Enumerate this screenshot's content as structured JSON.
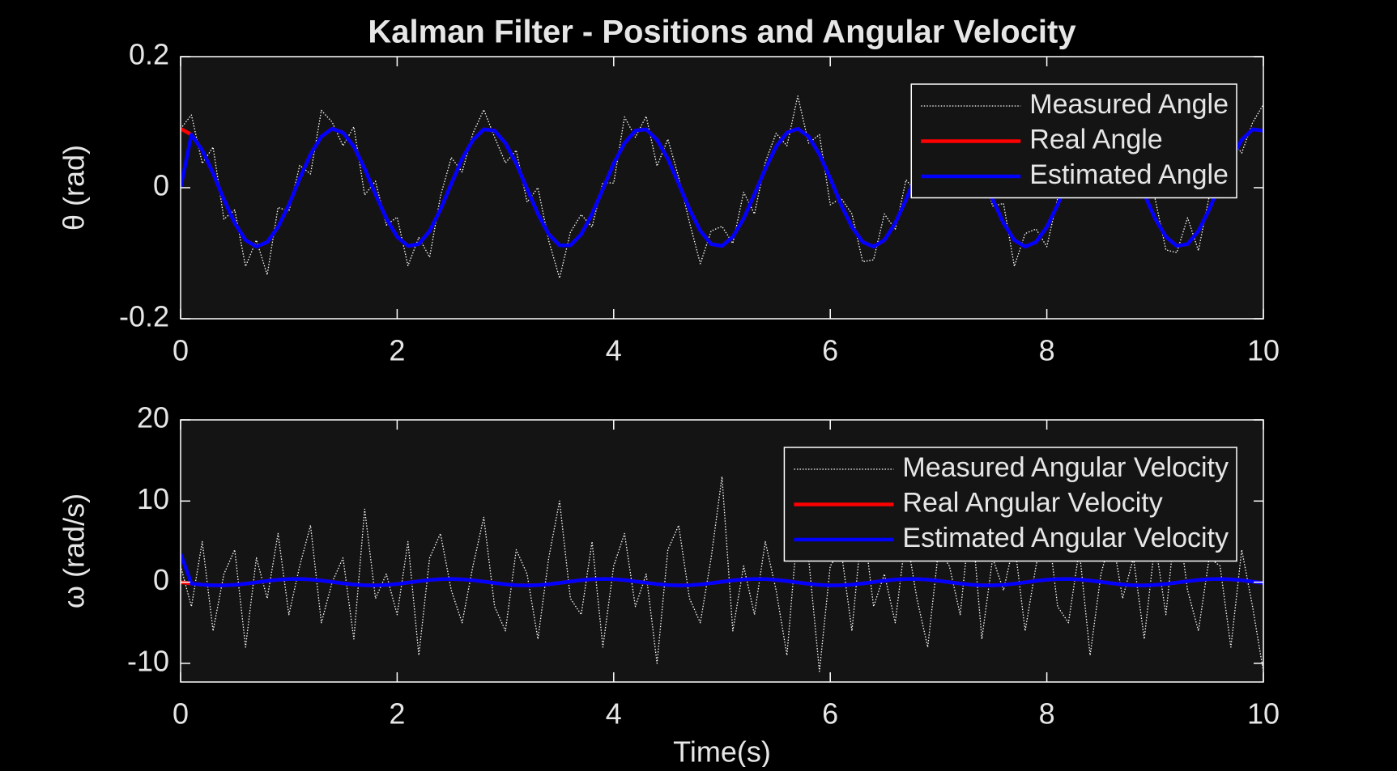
{
  "chart_data": [
    {
      "type": "line",
      "title": "Kalman Filter - Positions and Angular Velocity",
      "ylabel": "θ  (rad)",
      "x": [
        0,
        0.1,
        0.2,
        0.3,
        0.4,
        0.5,
        0.6,
        0.7,
        0.8,
        0.9,
        1,
        1.1,
        1.2,
        1.3,
        1.4,
        1.5,
        1.6,
        1.7,
        1.8,
        1.9,
        2,
        2.1,
        2.2,
        2.3,
        2.4,
        2.5,
        2.6,
        2.7,
        2.8,
        2.9,
        3,
        3.1,
        3.2,
        3.3,
        3.4,
        3.5,
        3.6,
        3.7,
        3.8,
        3.9,
        4,
        4.1,
        4.2,
        4.3,
        4.4,
        4.5,
        4.6,
        4.7,
        4.8,
        4.9,
        5,
        5.1,
        5.2,
        5.3,
        5.4,
        5.5,
        5.6,
        5.7,
        5.8,
        5.9,
        6,
        6.1,
        6.2,
        6.3,
        6.4,
        6.5,
        6.6,
        6.7,
        6.8,
        6.9,
        7,
        7.1,
        7.2,
        7.3,
        7.4,
        7.5,
        7.6,
        7.7,
        7.8,
        7.9,
        8,
        8.1,
        8.2,
        8.3,
        8.4,
        8.5,
        8.6,
        8.7,
        8.8,
        8.9,
        9,
        9.1,
        9.2,
        9.3,
        9.4,
        9.5,
        9.6,
        9.7,
        9.8,
        9.9,
        10
      ],
      "series": [
        {
          "name": "Measured Angle",
          "color": "#ffffff",
          "style": "dotted",
          "values": [
            0.09,
            0.111,
            0.037,
            0.062,
            -0.048,
            -0.034,
            -0.12,
            -0.08,
            -0.133,
            -0.03,
            -0.036,
            0.034,
            0.021,
            0.118,
            0.1,
            0.064,
            0.093,
            -0.011,
            0.01,
            -0.057,
            -0.045,
            -0.119,
            -0.076,
            -0.106,
            -0.013,
            0.046,
            0.024,
            0.083,
            0.119,
            0.077,
            0.038,
            0.057,
            -0.022,
            0,
            -0.081,
            -0.138,
            -0.068,
            -0.041,
            -0.06,
            0.008,
            0.007,
            0.108,
            0.077,
            0.109,
            0.033,
            0.074,
            0.016,
            -0.053,
            -0.116,
            -0.066,
            -0.059,
            -0.085,
            -0.007,
            -0.04,
            0.039,
            0.083,
            0.064,
            0.14,
            0.068,
            0.081,
            -0.026,
            -0.016,
            -0.04,
            -0.113,
            -0.11,
            -0.04,
            -0.064,
            0.012,
            -0.008,
            0.077,
            0.091,
            0.07,
            0.121,
            0.027,
            0.032,
            -0.028,
            -0.024,
            -0.12,
            -0.07,
            -0.063,
            -0.09,
            -0.016,
            -0.006,
            0.091,
            0.068,
            0.06,
            0.114,
            0.083,
            -0.011,
            0,
            -0.017,
            -0.095,
            -0.099,
            -0.046,
            -0.096,
            -0.013,
            -0.004,
            0.074,
            0.053,
            0.099,
            0.127
          ]
        },
        {
          "name": "Real Angle",
          "color": "#ff0000",
          "style": "solid",
          "values": [
            0.09,
            0.081,
            0.057,
            0.022,
            -0.018,
            -0.054,
            -0.08,
            -0.09,
            -0.083,
            -0.06,
            -0.026,
            0.014,
            0.051,
            0.078,
            0.09,
            0.084,
            0.063,
            0.029,
            -0.01,
            -0.047,
            -0.075,
            -0.089,
            -0.086,
            -0.066,
            -0.033,
            0.006,
            0.044,
            0.073,
            0.089,
            0.087,
            0.068,
            0.037,
            -0.002,
            -0.04,
            -0.071,
            -0.088,
            -0.088,
            -0.071,
            -0.04,
            -0.002,
            0.037,
            0.068,
            0.087,
            0.089,
            0.073,
            0.044,
            0.006,
            -0.033,
            -0.066,
            -0.086,
            -0.089,
            -0.075,
            -0.047,
            -0.01,
            0.029,
            0.063,
            0.084,
            0.09,
            0.078,
            0.051,
            0.014,
            -0.026,
            -0.06,
            -0.083,
            -0.09,
            -0.08,
            -0.054,
            -0.018,
            0.022,
            0.057,
            0.081,
            0.09,
            0.081,
            0.057,
            0.022,
            -0.018,
            -0.054,
            -0.08,
            -0.09,
            -0.083,
            -0.06,
            -0.026,
            0.014,
            0.051,
            0.078,
            0.09,
            0.084,
            0.063,
            0.029,
            -0.01,
            -0.047,
            -0.075,
            -0.089,
            -0.086,
            -0.066,
            -0.033,
            0.006,
            0.044,
            0.073,
            0.089,
            0.087
          ]
        },
        {
          "name": "Estimated Angle",
          "color": "#0000ff",
          "style": "solid",
          "values": [
            0,
            0.081,
            0.057,
            0.022,
            -0.018,
            -0.054,
            -0.08,
            -0.09,
            -0.083,
            -0.06,
            -0.026,
            0.014,
            0.051,
            0.078,
            0.09,
            0.084,
            0.063,
            0.029,
            -0.01,
            -0.047,
            -0.075,
            -0.089,
            -0.086,
            -0.066,
            -0.033,
            0.006,
            0.044,
            0.073,
            0.089,
            0.087,
            0.068,
            0.037,
            -0.002,
            -0.04,
            -0.071,
            -0.088,
            -0.088,
            -0.071,
            -0.04,
            -0.002,
            0.037,
            0.068,
            0.087,
            0.089,
            0.073,
            0.044,
            0.006,
            -0.033,
            -0.066,
            -0.086,
            -0.089,
            -0.075,
            -0.047,
            -0.01,
            0.029,
            0.063,
            0.084,
            0.09,
            0.078,
            0.051,
            0.014,
            -0.026,
            -0.06,
            -0.083,
            -0.09,
            -0.08,
            -0.054,
            -0.018,
            0.022,
            0.057,
            0.081,
            0.09,
            0.081,
            0.057,
            0.022,
            -0.018,
            -0.054,
            -0.08,
            -0.09,
            -0.083,
            -0.06,
            -0.026,
            0.014,
            0.051,
            0.078,
            0.09,
            0.084,
            0.063,
            0.029,
            -0.01,
            -0.047,
            -0.075,
            -0.089,
            -0.086,
            -0.066,
            -0.033,
            0.006,
            0.044,
            0.073,
            0.089,
            0.087
          ]
        }
      ],
      "xlim": [
        0,
        10
      ],
      "xticks": [
        0,
        2,
        4,
        6,
        8,
        10
      ],
      "ylim": [
        -0.2,
        0.2
      ],
      "yticks": [
        -0.2,
        0,
        0.2
      ],
      "legend": "northeast"
    },
    {
      "type": "line",
      "xlabel": "Time(s)",
      "ylabel": "ω  (rad/s)",
      "x": [
        0,
        0.1,
        0.2,
        0.3,
        0.4,
        0.5,
        0.6,
        0.7,
        0.8,
        0.9,
        1,
        1.1,
        1.2,
        1.3,
        1.4,
        1.5,
        1.6,
        1.7,
        1.8,
        1.9,
        2,
        2.1,
        2.2,
        2.3,
        2.4,
        2.5,
        2.6,
        2.7,
        2.8,
        2.9,
        3,
        3.1,
        3.2,
        3.3,
        3.4,
        3.5,
        3.6,
        3.7,
        3.8,
        3.9,
        4,
        4.1,
        4.2,
        4.3,
        4.4,
        4.5,
        4.6,
        4.7,
        4.8,
        4.9,
        5,
        5.1,
        5.2,
        5.3,
        5.4,
        5.5,
        5.6,
        5.7,
        5.8,
        5.9,
        6,
        6.1,
        6.2,
        6.3,
        6.4,
        6.5,
        6.6,
        6.7,
        6.8,
        6.9,
        7,
        7.1,
        7.2,
        7.3,
        7.4,
        7.5,
        7.6,
        7.7,
        7.8,
        7.9,
        8,
        8.1,
        8.2,
        8.3,
        8.4,
        8.5,
        8.6,
        8.7,
        8.8,
        8.9,
        9,
        9.1,
        9.2,
        9.3,
        9.4,
        9.5,
        9.6,
        9.7,
        9.8,
        9.9,
        10
      ],
      "series": [
        {
          "name": "Measured Angular Velocity",
          "color": "#ffffff",
          "style": "dotted",
          "values": [
            2,
            -3,
            5,
            -6,
            1,
            4,
            -8,
            3,
            -2,
            6,
            -4,
            2,
            7,
            -5,
            0,
            3,
            -7,
            9,
            -2,
            1,
            -4,
            5,
            -9,
            3,
            6,
            -1,
            -5,
            2,
            8,
            -3,
            -6,
            4,
            1,
            -7,
            3,
            10,
            -2,
            -4,
            5,
            -8,
            2,
            6,
            -3,
            1,
            -10,
            4,
            7,
            -2,
            -5,
            3,
            13,
            -6,
            2,
            -4,
            5,
            -1,
            -9,
            7,
            3,
            -11,
            2,
            4,
            -6,
            8,
            -3,
            1,
            -5,
            6,
            -2,
            -8,
            4,
            2,
            -4,
            9,
            -7,
            3,
            -1,
            5,
            -6,
            2,
            8,
            -3,
            -5,
            4,
            -9,
            1,
            6,
            -2,
            3,
            -7,
            5,
            -4,
            9,
            -1,
            -6,
            3,
            2,
            -8,
            4,
            -3,
            -11
          ]
        },
        {
          "name": "Real Angular Velocity",
          "color": "#ff0000",
          "style": "solid",
          "values": [
            0,
            -0.17,
            -0.31,
            -0.39,
            -0.39,
            -0.32,
            -0.19,
            -0.02,
            0.16,
            0.3,
            0.38,
            0.4,
            0.33,
            0.2,
            0.04,
            -0.14,
            -0.29,
            -0.38,
            -0.4,
            -0.34,
            -0.22,
            -0.05,
            0.12,
            0.27,
            0.37,
            0.4,
            0.35,
            0.23,
            0.07,
            -0.1,
            -0.26,
            -0.37,
            -0.4,
            -0.36,
            -0.25,
            -0.09,
            0.09,
            0.25,
            0.36,
            0.4,
            0.37,
            0.26,
            0.1,
            -0.07,
            -0.23,
            -0.35,
            -0.4,
            -0.37,
            -0.27,
            -0.12,
            0.05,
            0.22,
            0.34,
            0.4,
            0.38,
            0.29,
            0.14,
            -0.04,
            -0.2,
            -0.33,
            -0.4,
            -0.38,
            -0.3,
            -0.16,
            0.02,
            0.19,
            0.32,
            0.39,
            0.39,
            0.31,
            0.17,
            0,
            -0.17,
            -0.31,
            -0.39,
            -0.39,
            -0.32,
            -0.19,
            -0.02,
            0.16,
            0.3,
            0.38,
            0.4,
            0.33,
            0.2,
            0.04,
            -0.14,
            -0.29,
            -0.38,
            -0.4,
            -0.34,
            -0.22,
            -0.05,
            0.12,
            0.27,
            0.37,
            0.4,
            0.35,
            0.23,
            0.07,
            -0.1
          ]
        },
        {
          "name": "Estimated Angular Velocity",
          "color": "#0000ff",
          "style": "solid",
          "values": [
            3.5,
            -0.17,
            -0.31,
            -0.39,
            -0.39,
            -0.32,
            -0.19,
            -0.02,
            0.16,
            0.3,
            0.38,
            0.4,
            0.33,
            0.2,
            0.04,
            -0.14,
            -0.29,
            -0.38,
            -0.4,
            -0.34,
            -0.22,
            -0.05,
            0.12,
            0.27,
            0.37,
            0.4,
            0.35,
            0.23,
            0.07,
            -0.1,
            -0.26,
            -0.37,
            -0.4,
            -0.36,
            -0.25,
            -0.09,
            0.09,
            0.25,
            0.36,
            0.4,
            0.37,
            0.26,
            0.1,
            -0.07,
            -0.23,
            -0.35,
            -0.4,
            -0.37,
            -0.27,
            -0.12,
            0.05,
            0.22,
            0.34,
            0.4,
            0.38,
            0.29,
            0.14,
            -0.04,
            -0.2,
            -0.33,
            -0.4,
            -0.38,
            -0.3,
            -0.16,
            0.02,
            0.19,
            0.32,
            0.39,
            0.39,
            0.31,
            0.17,
            0,
            -0.17,
            -0.31,
            -0.39,
            -0.39,
            -0.32,
            -0.19,
            -0.02,
            0.16,
            0.3,
            0.38,
            0.4,
            0.33,
            0.2,
            0.04,
            -0.14,
            -0.29,
            -0.38,
            -0.4,
            -0.34,
            -0.22,
            -0.05,
            0.12,
            0.27,
            0.37,
            0.4,
            0.35,
            0.23,
            0.07,
            -0.1
          ]
        }
      ],
      "xlim": [
        0,
        10
      ],
      "xticks": [
        0,
        2,
        4,
        6,
        8,
        10
      ],
      "ylim": [
        -12.3,
        20
      ],
      "yticks": [
        -10,
        0,
        10,
        20
      ],
      "legend": "northeast"
    }
  ]
}
